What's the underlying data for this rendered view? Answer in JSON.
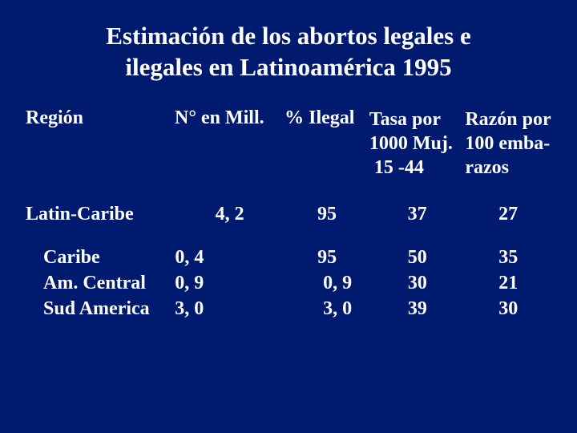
{
  "colors": {
    "background": "#001a70",
    "text": "#ffffff"
  },
  "typography": {
    "family": "Book Antiqua / Palatino serif",
    "title_fontsize_pt": 23,
    "body_fontsize_pt": 18,
    "weight": "bold"
  },
  "title": {
    "line1": "Estimación de los abortos legales e",
    "line2": "ilegales en Latinoamérica 1995"
  },
  "table": {
    "type": "table",
    "headers": {
      "region": "Región",
      "nmill": "N° en Mill.",
      "ilegal": "% Ilegal",
      "tasa_l1": "Tasa por",
      "tasa_l2": "1000 Muj.",
      "tasa_l3": "15 -44",
      "razon_l1": "Razón por",
      "razon_l2": "100 emba-",
      "razon_l3": "razos"
    },
    "section": {
      "region": "Latin-Caribe",
      "nmill": "4, 2",
      "ilegal": "95",
      "tasa": "37",
      "razon": "27"
    },
    "rows": [
      {
        "region": "Caribe",
        "nmill": "0, 4",
        "ilegal": "95",
        "ilegal_indent": false,
        "tasa": "50",
        "razon": "35"
      },
      {
        "region": "Am. Central",
        "nmill": "0, 9",
        "ilegal": "0, 9",
        "ilegal_indent": true,
        "tasa": "30",
        "razon": "21"
      },
      {
        "region": "Sud America",
        "nmill": "3, 0",
        "ilegal": "3, 0",
        "ilegal_indent": true,
        "tasa": "39",
        "razon": "30"
      }
    ]
  }
}
